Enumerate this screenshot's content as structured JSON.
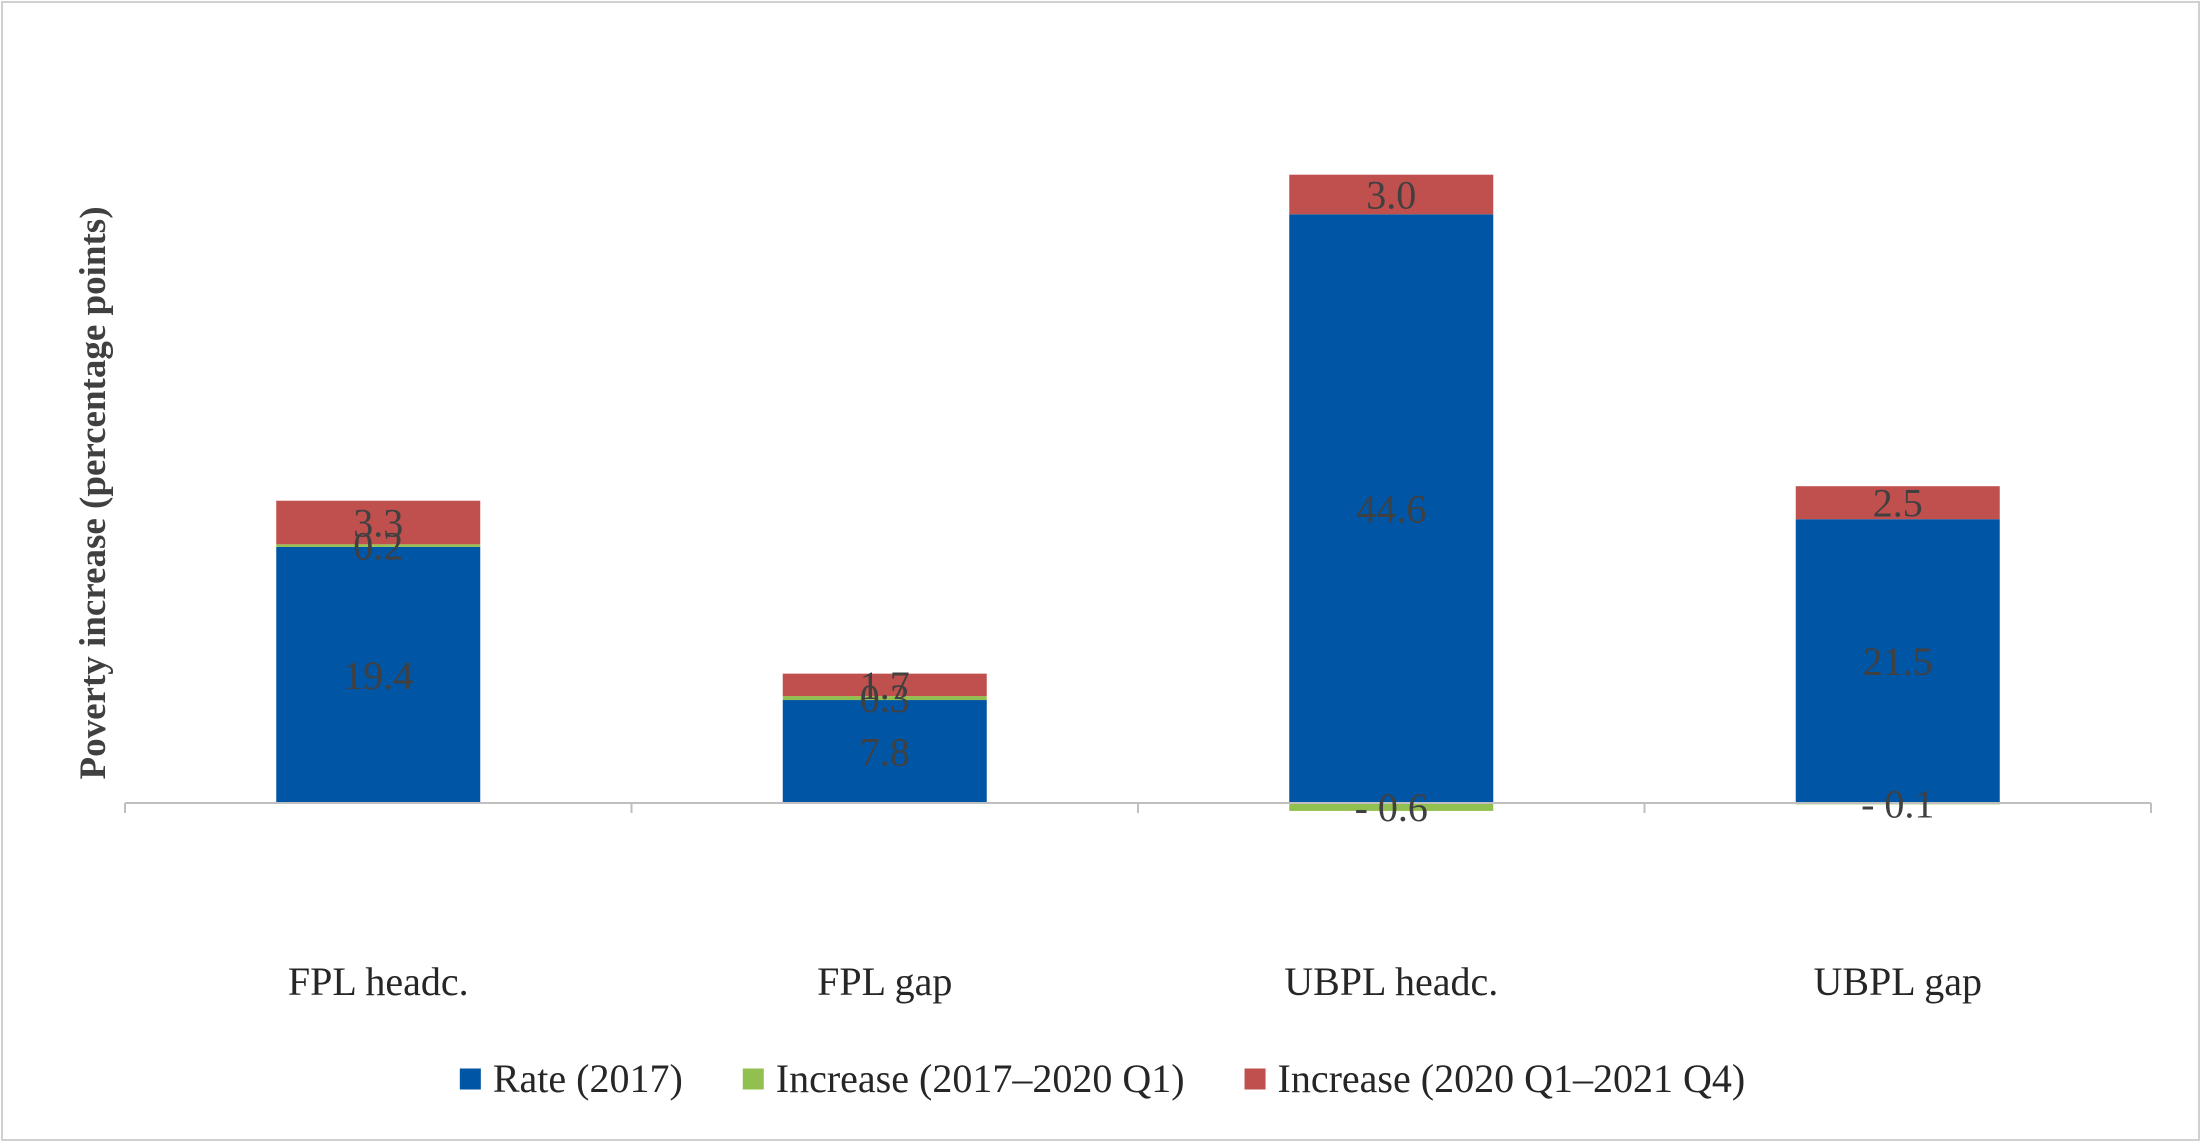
{
  "chart_data": {
    "type": "bar",
    "stacked": true,
    "ylabel": "Poverty increase (percentage points)",
    "xlabel": "",
    "categories": [
      "FPL headc.",
      "FPL gap",
      "UBPL headc.",
      "UBPL gap"
    ],
    "series": [
      {
        "name": "Rate (2017)",
        "color": "#0055a4",
        "values": [
          19.4,
          7.8,
          44.6,
          21.5
        ],
        "labels": [
          "19.4",
          "7.8",
          "44.6",
          "21.5"
        ]
      },
      {
        "name": "Increase (2017–2020 Q1)",
        "color": "#92c050",
        "values": [
          0.2,
          0.3,
          -0.6,
          -0.1
        ],
        "labels": [
          "0.2",
          "0.3",
          "- 0.6",
          "- 0.1"
        ]
      },
      {
        "name": "Increase (2020 Q1–2021 Q4)",
        "color": "#c0504d",
        "values": [
          3.3,
          1.7,
          3.0,
          2.5
        ],
        "labels": [
          "3.3",
          "1.7",
          "3.0",
          "2.5"
        ]
      }
    ],
    "ylim": [
      -8.5,
      48.5
    ],
    "grid": false,
    "legend_position": "bottom",
    "axis_color": "#bfbfbf",
    "label_color": "#404040"
  }
}
